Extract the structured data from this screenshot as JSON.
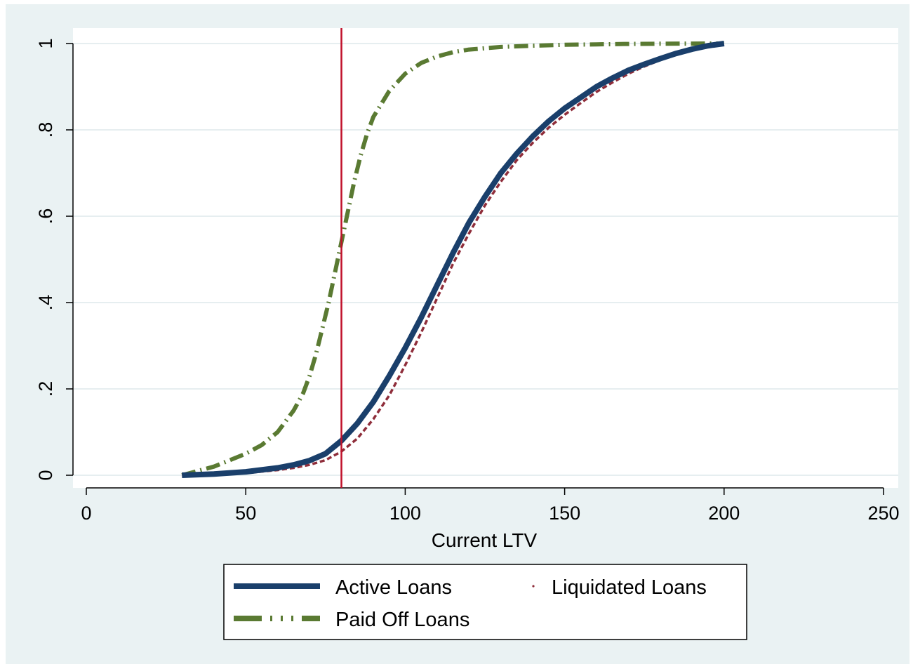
{
  "chart_data": {
    "type": "line",
    "title": "",
    "xlabel": "Current LTV",
    "ylabel": "",
    "xlim": [
      0,
      250
    ],
    "ylim": [
      0,
      1
    ],
    "x_ticks": [
      0,
      50,
      100,
      150,
      200,
      250
    ],
    "x_tick_labels": [
      "0",
      "50",
      "100",
      "150",
      "200",
      "250"
    ],
    "y_ticks": [
      0,
      0.2,
      0.4,
      0.6,
      0.8,
      1
    ],
    "y_tick_labels": [
      "0",
      ".2",
      ".4",
      ".6",
      ".8",
      "1"
    ],
    "grid": true,
    "legend_position": "bottom",
    "reference_line": {
      "axis": "x",
      "value": 80,
      "color": "#c0102a"
    },
    "colors": {
      "outer_background": "#eaf2f3",
      "plot_background": "#ffffff",
      "grid": "#e6eef0",
      "active": "#1a3f6b",
      "liquidated": "#8f2d3a",
      "paid_off": "#5a7a32"
    },
    "series": [
      {
        "name": "Active Loans",
        "style": "solid",
        "x": [
          30,
          40,
          50,
          60,
          65,
          70,
          75,
          80,
          85,
          90,
          95,
          100,
          105,
          110,
          115,
          120,
          125,
          130,
          135,
          140,
          145,
          150,
          155,
          160,
          165,
          170,
          175,
          180,
          185,
          190,
          195,
          200
        ],
        "y": [
          0,
          0.003,
          0.008,
          0.017,
          0.024,
          0.034,
          0.05,
          0.08,
          0.12,
          0.17,
          0.23,
          0.295,
          0.365,
          0.44,
          0.515,
          0.585,
          0.645,
          0.7,
          0.745,
          0.785,
          0.82,
          0.85,
          0.875,
          0.9,
          0.92,
          0.938,
          0.952,
          0.965,
          0.977,
          0.987,
          0.995,
          1
        ]
      },
      {
        "name": "Liquidated Loans",
        "style": "dashed",
        "x": [
          30,
          40,
          50,
          60,
          65,
          70,
          75,
          80,
          85,
          90,
          95,
          100,
          105,
          110,
          115,
          120,
          125,
          130,
          135,
          140,
          145,
          150,
          155,
          160,
          165,
          170,
          175,
          180,
          185,
          190,
          195,
          200
        ],
        "y": [
          0,
          0.002,
          0.005,
          0.012,
          0.017,
          0.024,
          0.035,
          0.055,
          0.085,
          0.13,
          0.185,
          0.255,
          0.33,
          0.41,
          0.49,
          0.56,
          0.625,
          0.68,
          0.73,
          0.77,
          0.805,
          0.835,
          0.862,
          0.888,
          0.91,
          0.93,
          0.947,
          0.962,
          0.975,
          0.986,
          0.995,
          1
        ]
      },
      {
        "name": "Paid Off Loans",
        "style": "dash-dot",
        "x": [
          30,
          40,
          50,
          55,
          60,
          65,
          68,
          70,
          72,
          74,
          76,
          78,
          80,
          82,
          84,
          86,
          88,
          90,
          95,
          100,
          105,
          110,
          115,
          120,
          130,
          140,
          150,
          160,
          170,
          180,
          190,
          200
        ],
        "y": [
          0,
          0.02,
          0.05,
          0.07,
          0.1,
          0.15,
          0.19,
          0.23,
          0.28,
          0.34,
          0.4,
          0.47,
          0.54,
          0.61,
          0.68,
          0.74,
          0.79,
          0.83,
          0.89,
          0.93,
          0.955,
          0.97,
          0.98,
          0.986,
          0.992,
          0.995,
          0.997,
          0.998,
          0.999,
          0.9995,
          0.9998,
          1
        ]
      }
    ]
  }
}
